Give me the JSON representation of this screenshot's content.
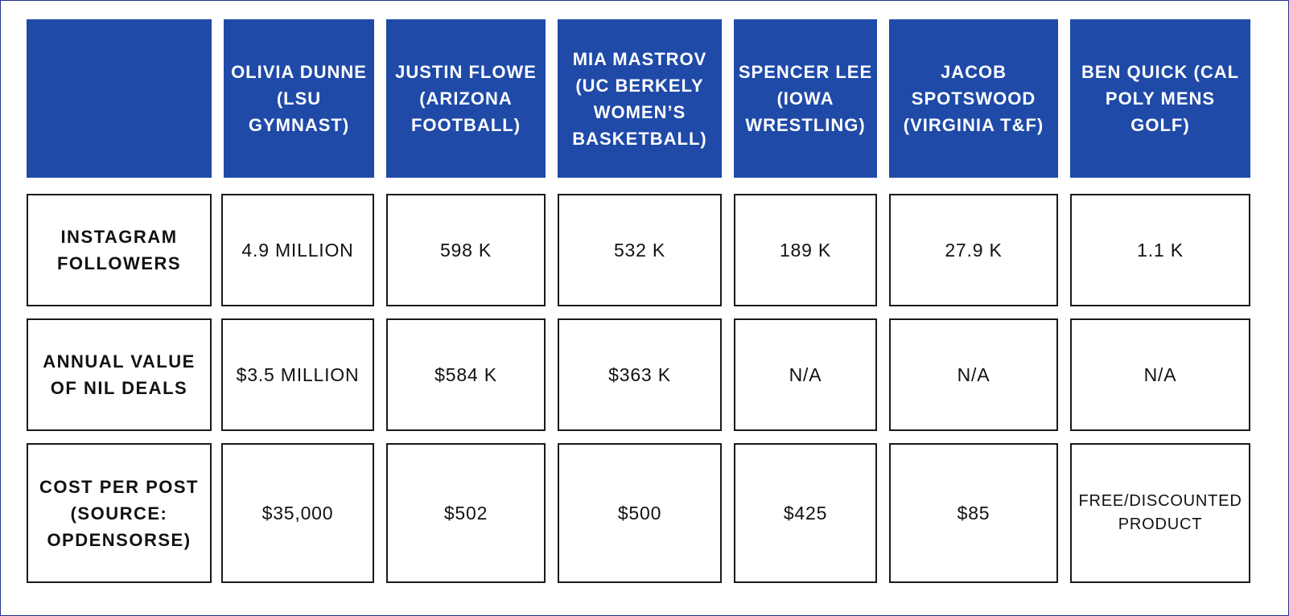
{
  "columns": [
    "OLIVIA DUNNE\n(LSU\nGYMNAST)",
    "JUSTIN FLOWE\n(ARIZONA\nFOOTBALL)",
    "MIA MASTROV\n(UC BERKELY\nWOMEN’S\nBASKETBALL)",
    "SPENCER LEE\n(IOWA\nWRESTLING)",
    "JACOB\nSPOTSWOOD\n(VIRGINIA T&F)",
    "BEN QUICK (CAL\nPOLY MENS\nGOLF)"
  ],
  "rows": [
    {
      "label": "INSTAGRAM\nFOLLOWERS",
      "values": [
        "4.9 MILLION",
        "598 K",
        "532 K",
        "189 K",
        "27.9 K",
        "1.1 K"
      ]
    },
    {
      "label": "ANNUAL VALUE\nOF NIL DEALS",
      "values": [
        "$3.5 MILLION",
        "$584 K",
        "$363 K",
        "N/A",
        "N/A",
        "N/A"
      ]
    },
    {
      "label": "COST PER POST\n(SOURCE:\nOPDENSORSE)",
      "values": [
        "$35,000",
        "$502",
        "$500",
        "$425",
        "$85",
        "FREE/DISCOUNTED\nPRODUCT"
      ]
    }
  ],
  "colors": {
    "header_bg": "#1f4aa8",
    "header_text": "#ffffff",
    "border": "#1a1a1a",
    "frame": "#27308f"
  }
}
